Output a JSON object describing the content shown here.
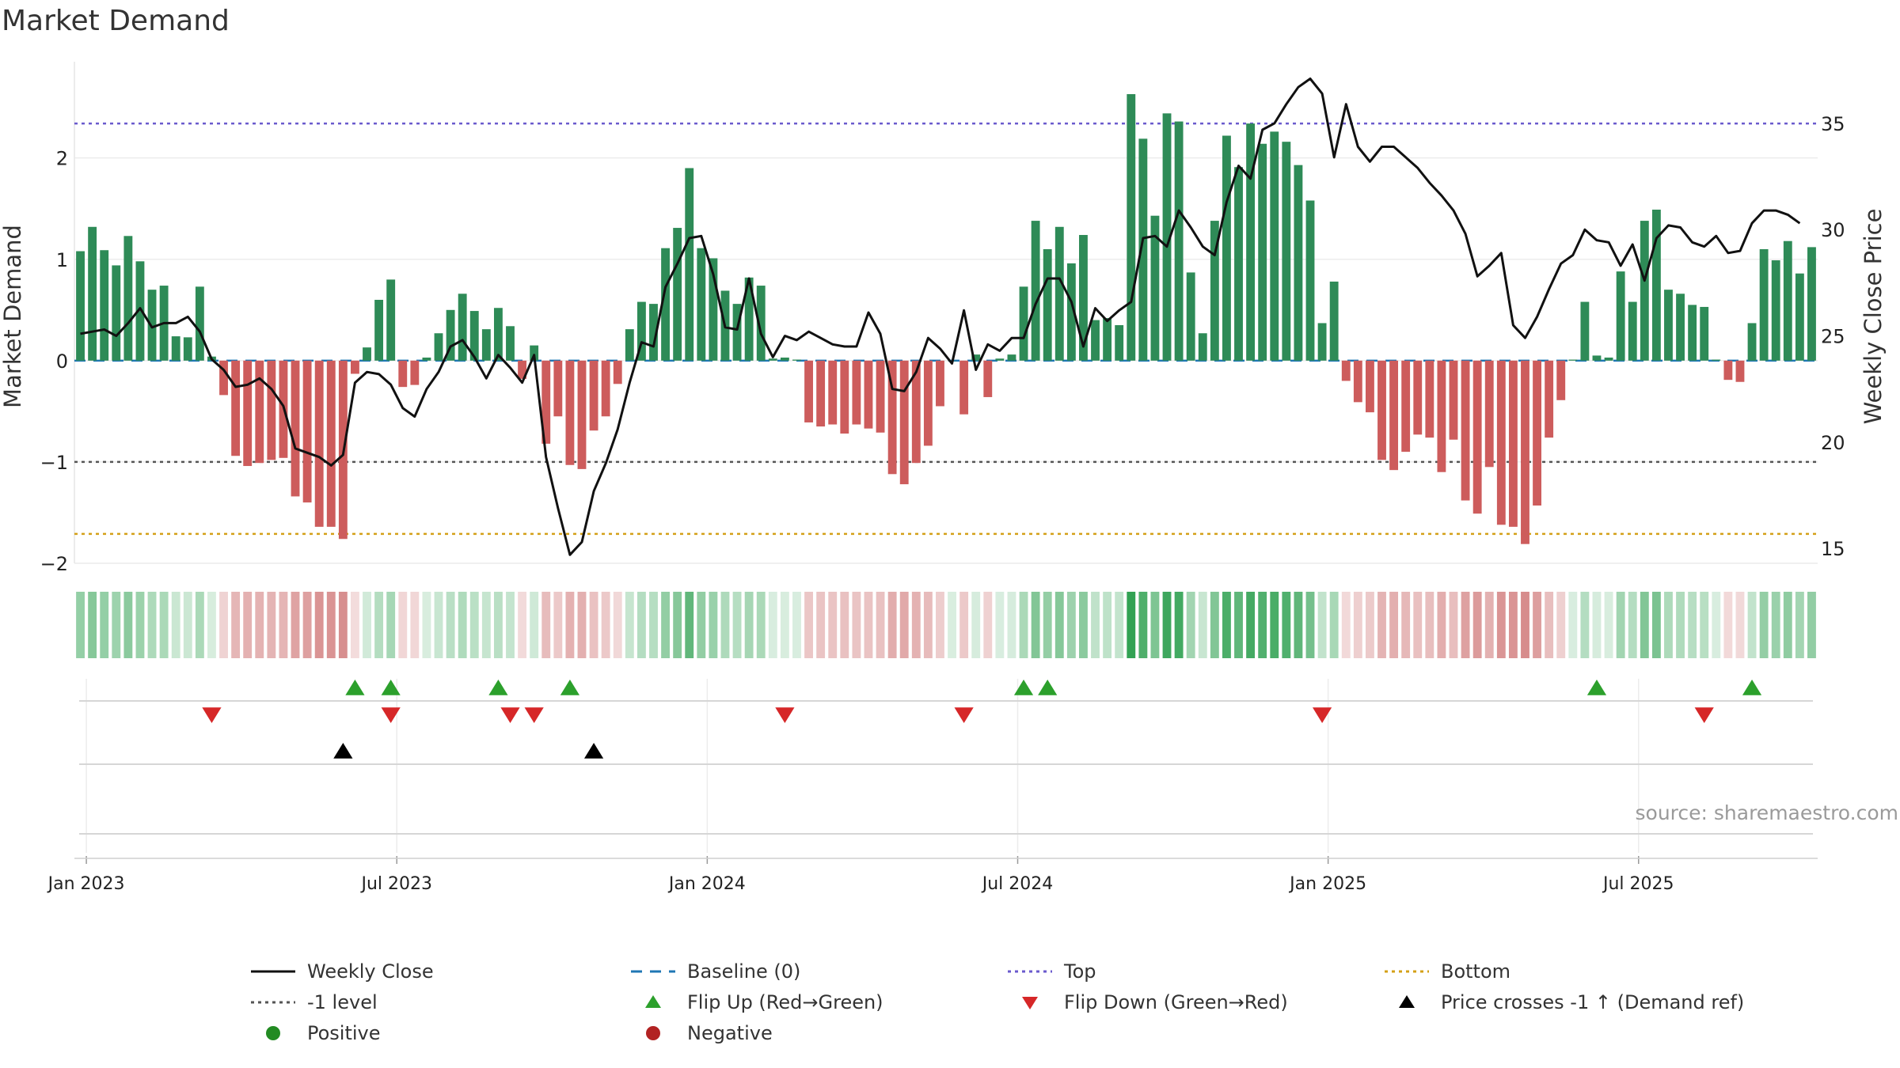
{
  "title": "Market Demand",
  "source": "source: sharemaestro.com",
  "colors": {
    "positive": "#2e8b57",
    "negative": "#cd5c5c",
    "price": "#111111",
    "baseline": "#1f77b4",
    "top": "#6a5acd",
    "minus1": "#555555",
    "bottom": "#d4a017",
    "flip_up": "#2ca02c",
    "flip_down": "#d62728",
    "cross": "#000000",
    "positive_dot": "#228b22",
    "negative_dot": "#b22222"
  },
  "chart_data": {
    "type": "bar+line",
    "title": "Market Demand",
    "ylabel_left": "Market Demand",
    "ylabel_right": "Weekly Close Price",
    "ylim_left": [
      -2.0,
      2.95
    ],
    "ylim_right": [
      14.3,
      37.9
    ],
    "left_ticks": [
      2,
      1,
      0,
      -1,
      -2
    ],
    "left_tick_labels": [
      "2",
      "1",
      "0",
      "−1",
      "−2"
    ],
    "right_ticks": [
      35,
      30,
      25,
      20,
      15
    ],
    "x_ticks": [
      "Jan 2023",
      "Jul 2023",
      "Jan 2024",
      "Jul 2024",
      "Jan 2025",
      "Jul 2025"
    ],
    "x_start_week_offset": -1,
    "reference_lines": {
      "baseline": 0,
      "top": 2.34,
      "minus1": -1,
      "bottom": -1.71
    },
    "demand": [
      1.08,
      1.32,
      1.09,
      0.94,
      1.23,
      0.98,
      0.7,
      0.74,
      0.24,
      0.23,
      0.73,
      0.04,
      -0.34,
      -0.94,
      -1.04,
      -1.01,
      -0.98,
      -0.96,
      -1.34,
      -1.4,
      -1.64,
      -1.64,
      -1.76,
      -0.13,
      0.13,
      0.6,
      0.8,
      -0.26,
      -0.24,
      0.03,
      0.27,
      0.5,
      0.66,
      0.49,
      0.31,
      0.52,
      0.34,
      -0.18,
      0.15,
      -0.82,
      -0.55,
      -1.03,
      -1.07,
      -0.69,
      -0.55,
      -0.23,
      0.31,
      0.58,
      0.56,
      1.11,
      1.31,
      1.9,
      1.11,
      1.01,
      0.69,
      0.56,
      0.82,
      0.74,
      0.02,
      0.03,
      0.01,
      -0.61,
      -0.65,
      -0.63,
      -0.72,
      -0.63,
      -0.67,
      -0.71,
      -1.12,
      -1.22,
      -1.01,
      -0.84,
      -0.45,
      0.0,
      -0.53,
      0.06,
      -0.36,
      0.02,
      0.06,
      0.73,
      1.38,
      1.1,
      1.32,
      0.96,
      1.24,
      0.4,
      0.42,
      0.35,
      2.63,
      2.19,
      1.43,
      2.44,
      2.36,
      0.87,
      0.27,
      1.38,
      2.22,
      1.91,
      2.34,
      2.14,
      2.26,
      2.16,
      1.93,
      1.58,
      0.37,
      0.78,
      -0.2,
      -0.41,
      -0.51,
      -0.98,
      -1.08,
      -0.9,
      -0.73,
      -0.76,
      -1.1,
      -0.78,
      -1.38,
      -1.51,
      -1.05,
      -1.62,
      -1.64,
      -1.81,
      -1.43,
      -0.76,
      -0.39,
      0.01,
      0.58,
      0.05,
      0.03,
      0.88,
      0.58,
      1.38,
      1.49,
      0.7,
      0.66,
      0.55,
      0.53,
      0.01,
      -0.19,
      -0.21,
      0.37,
      1.1,
      0.99,
      1.18,
      0.86,
      1.12
    ],
    "weekly_close": [
      25.1,
      25.2,
      25.3,
      25.0,
      25.6,
      26.3,
      25.4,
      25.6,
      25.6,
      25.9,
      25.2,
      23.9,
      23.4,
      22.6,
      22.7,
      23.0,
      22.5,
      21.7,
      19.7,
      19.5,
      19.3,
      18.9,
      19.4,
      22.8,
      23.3,
      23.2,
      22.7,
      21.6,
      21.2,
      22.5,
      23.3,
      24.5,
      24.8,
      24.0,
      23.0,
      24.1,
      23.5,
      22.8,
      24.1,
      19.3,
      16.9,
      14.7,
      15.3,
      17.7,
      19.0,
      20.6,
      22.8,
      24.7,
      24.5,
      27.3,
      28.4,
      29.6,
      29.7,
      27.9,
      25.4,
      25.3,
      27.7,
      25.1,
      24.0,
      25.0,
      24.8,
      25.2,
      24.9,
      24.6,
      24.5,
      24.5,
      26.1,
      25.1,
      22.5,
      22.4,
      23.3,
      24.9,
      24.4,
      23.7,
      26.2,
      23.4,
      24.6,
      24.3,
      24.9,
      24.9,
      26.5,
      27.7,
      27.7,
      26.6,
      24.5,
      26.3,
      25.7,
      26.2,
      26.6,
      29.6,
      29.7,
      29.2,
      30.9,
      30.1,
      29.2,
      28.8,
      31.3,
      33.0,
      32.4,
      34.7,
      35.0,
      35.9,
      36.7,
      37.1,
      36.4,
      33.4,
      35.9,
      33.9,
      33.2,
      33.9,
      33.9,
      33.4,
      32.9,
      32.2,
      31.6,
      30.9,
      29.8,
      27.8,
      28.3,
      28.9,
      25.5,
      24.9,
      25.9,
      27.2,
      28.4,
      28.8,
      30.0,
      29.5,
      29.4,
      28.3,
      29.3,
      27.6,
      29.6,
      30.2,
      30.1,
      29.4,
      29.2,
      29.7,
      28.9,
      29.0,
      30.3,
      30.9,
      30.9,
      30.7,
      30.3
    ],
    "flip_up_weeks": [
      23,
      26,
      35,
      41,
      79,
      81,
      127,
      140
    ],
    "flip_down_weeks": [
      11,
      26,
      36,
      38,
      59,
      74,
      104,
      136
    ],
    "price_cross_weeks": [
      22,
      43
    ],
    "intensity_strip": "Weekly demand intensity (green = positive, red = negative)"
  },
  "legend": [
    {
      "label": "Weekly Close",
      "symbol": "line-solid"
    },
    {
      "label": "Baseline (0)",
      "symbol": "line-dash"
    },
    {
      "label": "Top",
      "symbol": "line-dot-top"
    },
    {
      "label": "Bottom",
      "symbol": "line-dot-bottom"
    },
    {
      "label": "-1 level",
      "symbol": "line-dot-minus1"
    },
    {
      "label": "Flip Up (Red→Green)",
      "symbol": "triangle-up-green"
    },
    {
      "label": "Flip Down (Green→Red)",
      "symbol": "triangle-down-red"
    },
    {
      "label": "Price crosses -1 ↑ (Demand ref)",
      "symbol": "triangle-up-black"
    },
    {
      "label": "Positive",
      "symbol": "dot-green"
    },
    {
      "label": "Negative",
      "symbol": "dot-red"
    }
  ]
}
